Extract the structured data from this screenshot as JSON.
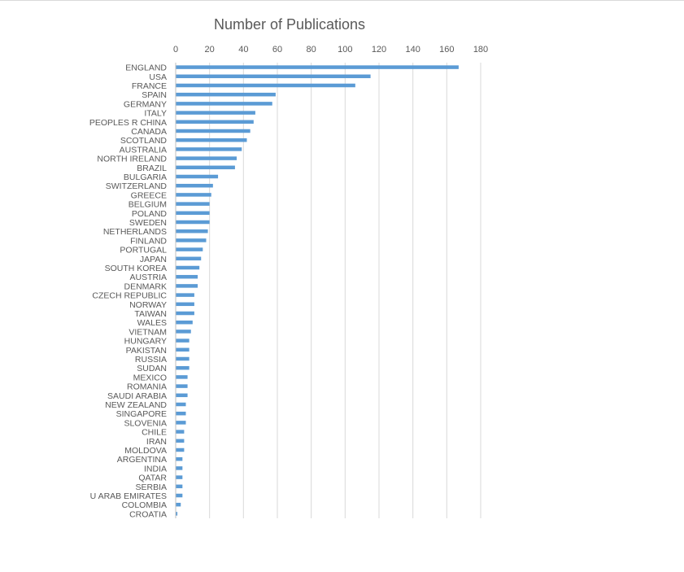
{
  "chart_data": {
    "type": "bar",
    "orientation": "horizontal",
    "title": "Number of Publications",
    "xlim": [
      0,
      180
    ],
    "xticks": [
      0,
      20,
      40,
      60,
      80,
      100,
      120,
      140,
      160,
      180
    ],
    "grid": true,
    "legend": "none",
    "bar_color": "#5b9bd5",
    "categories": [
      "ENGLAND",
      "USA",
      "FRANCE",
      "SPAIN",
      "GERMANY",
      "ITALY",
      "PEOPLES R CHINA",
      "CANADA",
      "SCOTLAND",
      "AUSTRALIA",
      "NORTH IRELAND",
      "BRAZIL",
      "BULGARIA",
      "SWITZERLAND",
      "GREECE",
      "BELGIUM",
      "POLAND",
      "SWEDEN",
      "NETHERLANDS",
      "FINLAND",
      "PORTUGAL",
      "JAPAN",
      "SOUTH KOREA",
      "AUSTRIA",
      "DENMARK",
      "CZECH REPUBLIC",
      "NORWAY",
      "TAIWAN",
      "WALES",
      "VIETNAM",
      "HUNGARY",
      "PAKISTAN",
      "RUSSIA",
      "SUDAN",
      "MEXICO",
      "ROMANIA",
      "SAUDI ARABIA",
      "NEW ZEALAND",
      "SINGAPORE",
      "SLOVENIA",
      "CHILE",
      "IRAN",
      "MOLDOVA",
      "ARGENTINA",
      "INDIA",
      "QATAR",
      "SERBIA",
      "U ARAB EMIRATES",
      "COLOMBIA",
      "CROATIA"
    ],
    "values": [
      167,
      115,
      106,
      59,
      57,
      47,
      46,
      44,
      42,
      39,
      36,
      35,
      25,
      22,
      21,
      20,
      20,
      20,
      19,
      18,
      16,
      15,
      14,
      13,
      13,
      11,
      11,
      11,
      10,
      9,
      8,
      8,
      8,
      8,
      7,
      7,
      7,
      6,
      6,
      6,
      5,
      5,
      5,
      4,
      4,
      4,
      4,
      4,
      3,
      1
    ]
  }
}
